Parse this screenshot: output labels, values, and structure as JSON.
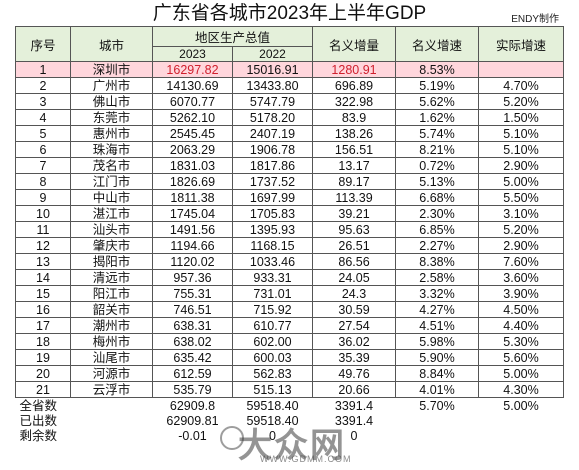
{
  "title": "广东省各城市2023年上半年GDP",
  "credit": "ENDY制作",
  "headers": {
    "no": "序号",
    "city": "城市",
    "gdp_group": "地区生产总值",
    "y2023": "2023",
    "y2022": "2022",
    "nominal": "名义增量",
    "nominal_rate": "名义增速",
    "real_rate": "实际增速"
  },
  "rows": [
    [
      "1",
      "深圳市",
      "16297.82",
      "15016.91",
      "1280.91",
      "8.53%",
      ""
    ],
    [
      "2",
      "广州市",
      "14130.69",
      "13433.80",
      "696.89",
      "5.19%",
      "4.70%"
    ],
    [
      "3",
      "佛山市",
      "6070.77",
      "5747.79",
      "322.98",
      "5.62%",
      "5.20%"
    ],
    [
      "4",
      "东莞市",
      "5262.10",
      "5178.20",
      "83.9",
      "1.62%",
      "1.50%"
    ],
    [
      "5",
      "惠州市",
      "2545.45",
      "2407.19",
      "138.26",
      "5.74%",
      "5.10%"
    ],
    [
      "6",
      "珠海市",
      "2063.29",
      "1906.78",
      "156.51",
      "8.21%",
      "5.10%"
    ],
    [
      "7",
      "茂名市",
      "1831.03",
      "1817.86",
      "13.17",
      "0.72%",
      "2.90%"
    ],
    [
      "8",
      "江门市",
      "1826.69",
      "1737.52",
      "89.17",
      "5.13%",
      "5.00%"
    ],
    [
      "9",
      "中山市",
      "1811.38",
      "1697.99",
      "113.39",
      "6.68%",
      "5.50%"
    ],
    [
      "10",
      "湛江市",
      "1745.04",
      "1705.83",
      "39.21",
      "2.30%",
      "3.10%"
    ],
    [
      "11",
      "汕头市",
      "1491.56",
      "1395.93",
      "95.63",
      "6.85%",
      "5.20%"
    ],
    [
      "12",
      "肇庆市",
      "1194.66",
      "1168.15",
      "26.51",
      "2.27%",
      "2.90%"
    ],
    [
      "13",
      "揭阳市",
      "1120.02",
      "1033.46",
      "86.56",
      "8.38%",
      "7.60%"
    ],
    [
      "14",
      "清远市",
      "957.36",
      "933.31",
      "24.05",
      "2.58%",
      "3.60%"
    ],
    [
      "15",
      "阳江市",
      "755.31",
      "731.01",
      "24.3",
      "3.32%",
      "3.90%"
    ],
    [
      "16",
      "韶关市",
      "746.51",
      "715.92",
      "30.59",
      "4.27%",
      "4.50%"
    ],
    [
      "17",
      "潮州市",
      "638.31",
      "610.77",
      "27.54",
      "4.51%",
      "4.40%"
    ],
    [
      "18",
      "梅州市",
      "638.02",
      "602.00",
      "36.02",
      "5.98%",
      "5.30%"
    ],
    [
      "19",
      "汕尾市",
      "635.42",
      "600.03",
      "35.39",
      "5.90%",
      "5.60%"
    ],
    [
      "20",
      "河源市",
      "612.59",
      "562.83",
      "49.76",
      "8.84%",
      "5.00%"
    ],
    [
      "21",
      "云浮市",
      "535.79",
      "515.13",
      "20.66",
      "4.01%",
      "4.30%"
    ]
  ],
  "summary": [
    [
      "全省数",
      "62909.8",
      "59518.40",
      "3391.4",
      "5.70%",
      "5.00%"
    ],
    [
      "已出数",
      "62909.81",
      "59518.40",
      "3391.4",
      "",
      ""
    ],
    [
      "剩余数",
      "-0.01",
      "0",
      "0",
      "",
      ""
    ]
  ],
  "watermark": {
    "text": "大众网",
    "url": "WWW.GDMM.COM"
  }
}
